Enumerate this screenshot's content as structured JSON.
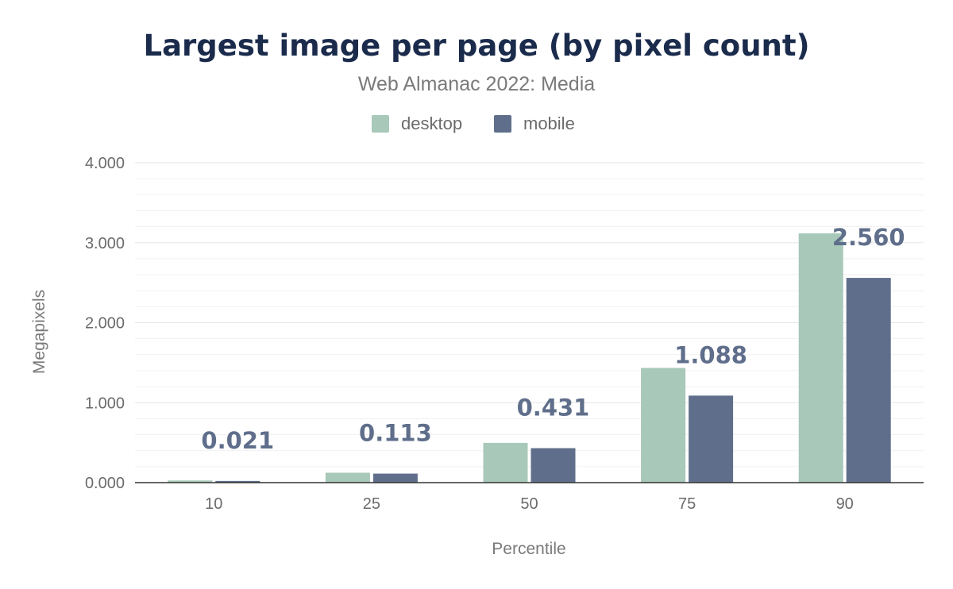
{
  "chart_data": {
    "type": "bar",
    "title": "Largest image per page (by pixel count)",
    "subtitle": "Web Almanac 2022: Media",
    "xlabel": "Percentile",
    "ylabel": "Megapixels",
    "categories": [
      "10",
      "25",
      "50",
      "75",
      "90"
    ],
    "series": [
      {
        "name": "desktop",
        "color": "#a8c8b9",
        "values": [
          0.027,
          0.124,
          0.497,
          1.434,
          3.118
        ]
      },
      {
        "name": "mobile",
        "color": "#5f6e8a",
        "values": [
          0.021,
          0.113,
          0.431,
          1.088,
          2.56
        ]
      }
    ],
    "data_labels": [
      "0.021",
      "0.113",
      "0.431",
      "1.088",
      "2.560"
    ],
    "ylim": [
      0,
      4
    ],
    "yticks": [
      0,
      1,
      2,
      3,
      4
    ],
    "ytick_labels": [
      "0.000",
      "1.000",
      "2.000",
      "3.000",
      "4.000"
    ],
    "legend_position": "top-center",
    "grid": true
  }
}
